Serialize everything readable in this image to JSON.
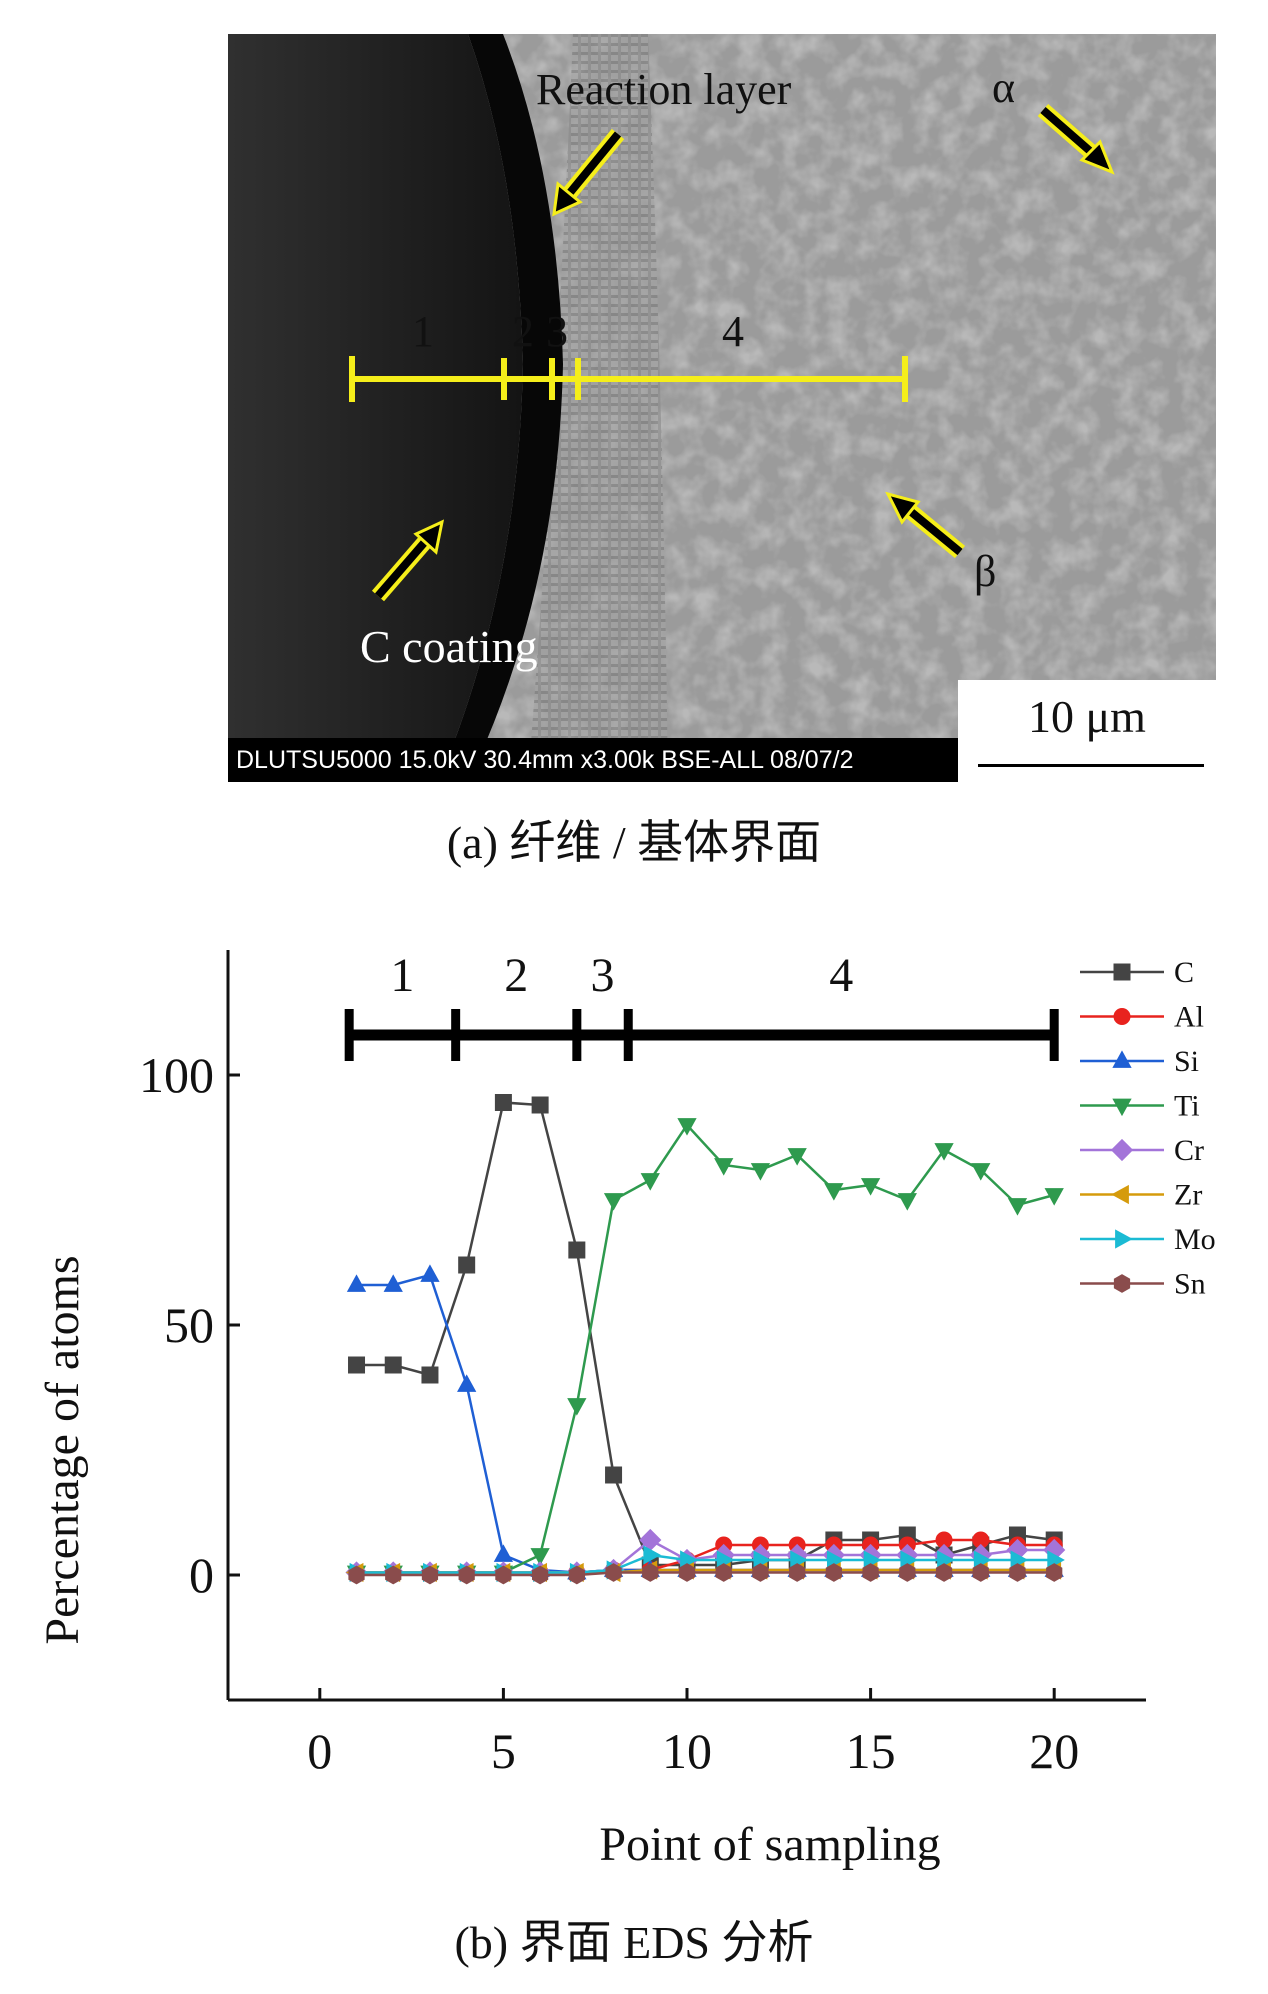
{
  "sem": {
    "databar": "DLUTSU5000 15.0kV 30.4mm x3.00k BSE-ALL 08/07/2",
    "scale_label": "10 μm",
    "labels": {
      "reaction_layer": "Reaction layer",
      "alpha": "α",
      "beta": "β",
      "c_coating": "C coating",
      "seg1": "1",
      "seg2": "2",
      "seg3": "3",
      "seg4": "4"
    },
    "caption": "(a) 纤维 / 基体界面"
  },
  "chart_caption": "(b) 界面 EDS 分析",
  "chart_data": {
    "type": "line",
    "xlabel": "Point of sampling",
    "ylabel": "Percentage of atoms",
    "xlim": [
      -2.5,
      22.5
    ],
    "ylim": [
      -25,
      125
    ],
    "xticks": [
      0,
      5,
      10,
      15,
      20
    ],
    "yticks": [
      0,
      50,
      100
    ],
    "grid": false,
    "legend_position": "top-right",
    "segments": [
      {
        "label": "1",
        "x_start": 0.8,
        "x_end": 3.7
      },
      {
        "label": "2",
        "x_start": 3.7,
        "x_end": 7.0
      },
      {
        "label": "3",
        "x_start": 7.0,
        "x_end": 8.4
      },
      {
        "label": "4",
        "x_start": 8.4,
        "x_end": 20.0
      }
    ],
    "x": [
      1,
      2,
      3,
      4,
      5,
      6,
      7,
      8,
      9,
      10,
      11,
      12,
      13,
      14,
      15,
      16,
      17,
      18,
      19,
      20
    ],
    "series": [
      {
        "name": "C",
        "color": "#444444",
        "marker": "square",
        "values": [
          42,
          42,
          40,
          62,
          94.5,
          94,
          65,
          20,
          2,
          2,
          2,
          3,
          3,
          7,
          7,
          8,
          4,
          6,
          8,
          7
        ]
      },
      {
        "name": "Al",
        "color": "#e8231e",
        "marker": "circle",
        "values": [
          0.5,
          0.5,
          0.5,
          0.5,
          0.5,
          0.5,
          0.5,
          1,
          1,
          3,
          6,
          6,
          6,
          6,
          6,
          6,
          7,
          7,
          6,
          6
        ]
      },
      {
        "name": "Si",
        "color": "#1f5fd4",
        "marker": "triangle-up",
        "values": [
          58,
          58,
          60,
          38,
          4,
          1,
          0.5,
          1,
          1,
          1,
          1,
          1,
          1,
          1,
          1,
          1,
          1,
          1,
          1,
          1
        ]
      },
      {
        "name": "Ti",
        "color": "#2e9a4e",
        "marker": "triangle-down",
        "values": [
          0.5,
          0.5,
          0.5,
          0.5,
          0.5,
          4,
          34,
          75,
          79,
          90,
          82,
          81,
          84,
          77,
          78,
          75,
          85,
          81,
          74,
          76
        ]
      },
      {
        "name": "Cr",
        "color": "#a374d9",
        "marker": "diamond",
        "values": [
          0.5,
          0.5,
          0.5,
          0.5,
          0.5,
          0.5,
          0.5,
          1,
          7,
          3,
          4,
          4,
          4,
          4,
          4,
          4,
          4,
          4,
          5,
          5
        ]
      },
      {
        "name": "Zr",
        "color": "#d59b0c",
        "marker": "triangle-left",
        "values": [
          0.5,
          0.5,
          0.5,
          0.5,
          0.5,
          0.5,
          0.5,
          0.5,
          1,
          1,
          1,
          1,
          1,
          1,
          1,
          1,
          1,
          1,
          1,
          1
        ]
      },
      {
        "name": "Mo",
        "color": "#1bbbd4",
        "marker": "triangle-right",
        "values": [
          0.5,
          0.5,
          0.5,
          0.5,
          0.5,
          0.5,
          0.5,
          1,
          4,
          3,
          3,
          3,
          3,
          3,
          3,
          3,
          3,
          3,
          3,
          3
        ]
      },
      {
        "name": "Sn",
        "color": "#8a4c4c",
        "marker": "hexagon",
        "values": [
          0,
          0,
          0,
          0,
          0,
          0,
          0,
          0.5,
          0.5,
          0.5,
          0.5,
          0.5,
          0.5,
          0.5,
          0.5,
          0.5,
          0.5,
          0.5,
          0.5,
          0.5
        ]
      }
    ]
  }
}
